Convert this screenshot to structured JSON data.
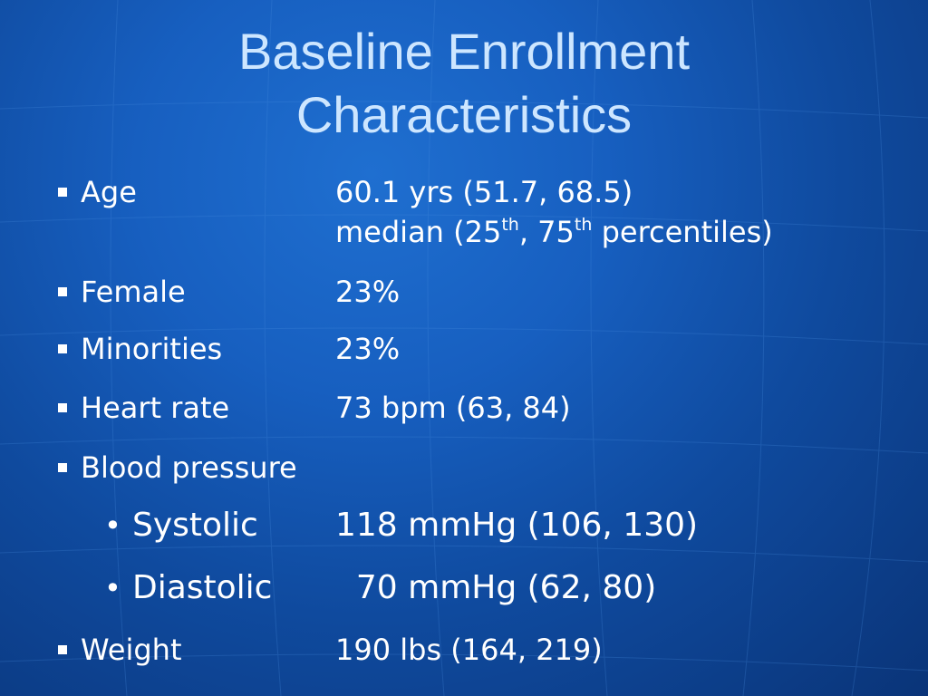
{
  "slide": {
    "title_line1": "Baseline Enrollment",
    "title_line2": "Characteristics",
    "rows": [
      {
        "label": "Age",
        "value": "60.1 yrs (51.7, 68.5)",
        "note": {
          "a": "median (25",
          "sup1": "th",
          "b": ", 75",
          "sup2": "th",
          "c": " percentiles)"
        }
      },
      {
        "label": "Female",
        "value": "23%"
      },
      {
        "label": "Minorities",
        "value": "23%"
      },
      {
        "label": "Heart rate",
        "value": "73 bpm (63, 84)"
      },
      {
        "label": "Blood pressure",
        "value": ""
      },
      {
        "label": "Systolic",
        "value": "118 mmHg (106, 130)"
      },
      {
        "label": "Diastolic",
        "value": "  70 mmHg (62, 80)"
      },
      {
        "label": "Weight",
        "value": "190 lbs (164, 219)"
      }
    ],
    "bullet_square": "■",
    "bullet_dot": "•"
  }
}
